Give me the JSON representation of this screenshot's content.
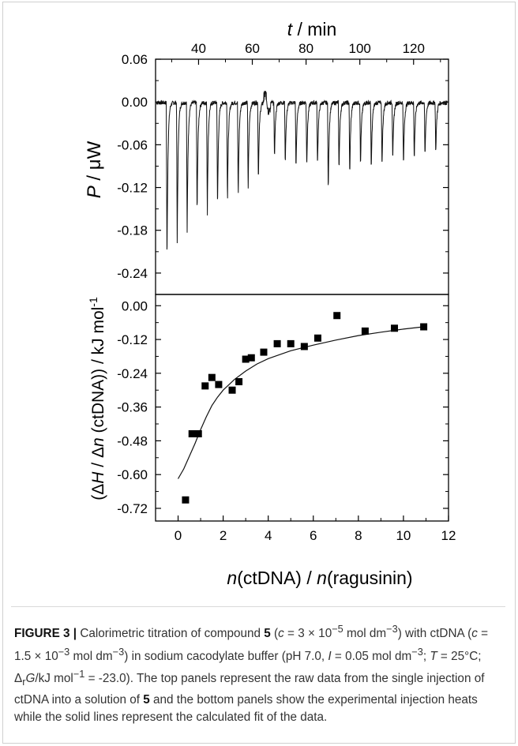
{
  "chart_data": [
    {
      "panel": "top",
      "type": "line",
      "top_axis_label": "t / min",
      "top_axis_label_var": "t",
      "top_axis_label_unit": " / min",
      "top_ticks": [
        40,
        60,
        80,
        100,
        120
      ],
      "top_range": [
        24,
        133
      ],
      "ylabel_var": "P",
      "ylabel_unit": " /  μW",
      "y_ticks": [
        "0.06",
        "0.00",
        "-0.06",
        "-0.12",
        "-0.18",
        "-0.24"
      ],
      "ylim": [
        -0.27,
        0.06
      ],
      "baseline": -0.001,
      "injections": [
        {
          "t": 28.0,
          "p": -0.235
        },
        {
          "t": 31.8,
          "p": -0.205
        },
        {
          "t": 35.5,
          "p": -0.191
        },
        {
          "t": 39.2,
          "p": -0.164
        },
        {
          "t": 43.0,
          "p": -0.161
        },
        {
          "t": 46.8,
          "p": -0.155
        },
        {
          "t": 50.5,
          "p": -0.145
        },
        {
          "t": 54.5,
          "p": -0.139
        },
        {
          "t": 58.2,
          "p": -0.125
        },
        {
          "t": 62.0,
          "p": -0.115
        },
        {
          "t": 68.0,
          "p": -0.08
        },
        {
          "t": 72.0,
          "p": -0.09
        },
        {
          "t": 76.0,
          "p": -0.097
        },
        {
          "t": 80.0,
          "p": -0.094
        },
        {
          "t": 84.0,
          "p": -0.093
        },
        {
          "t": 88.0,
          "p": -0.132
        },
        {
          "t": 92.0,
          "p": -0.099
        },
        {
          "t": 96.0,
          "p": -0.106
        },
        {
          "t": 100.0,
          "p": -0.094
        },
        {
          "t": 104.0,
          "p": -0.1
        },
        {
          "t": 108.0,
          "p": -0.094
        },
        {
          "t": 112.0,
          "p": -0.084
        },
        {
          "t": 116.0,
          "p": -0.093
        },
        {
          "t": 120.0,
          "p": -0.084
        },
        {
          "t": 124.0,
          "p": -0.079
        },
        {
          "t": 128.0,
          "p": -0.076
        }
      ]
    },
    {
      "panel": "bottom",
      "type": "scatter",
      "xlabel_parts": [
        "n",
        "(ctDNA) / ",
        "n",
        "(ragusinin)"
      ],
      "ylabel_parts": [
        "(Δ",
        "H",
        " / Δ",
        "n",
        " (ctDNA)) / kJ mol",
        "-1"
      ],
      "x_ticks": [
        "0",
        "2",
        "4",
        "6",
        "8",
        "10",
        "12"
      ],
      "xlim": [
        -1,
        12
      ],
      "y_ticks": [
        "0.00",
        "-0.12",
        "-0.24",
        "-0.36",
        "-0.48",
        "-0.60",
        "-0.72"
      ],
      "ylim": [
        -0.765,
        0.04
      ],
      "points": [
        {
          "x": 0.33,
          "y": -0.69
        },
        {
          "x": 0.62,
          "y": -0.455
        },
        {
          "x": 0.9,
          "y": -0.455
        },
        {
          "x": 1.2,
          "y": -0.285
        },
        {
          "x": 1.5,
          "y": -0.255
        },
        {
          "x": 1.8,
          "y": -0.28
        },
        {
          "x": 2.4,
          "y": -0.3
        },
        {
          "x": 2.7,
          "y": -0.27
        },
        {
          "x": 3.0,
          "y": -0.19
        },
        {
          "x": 3.25,
          "y": -0.185
        },
        {
          "x": 3.8,
          "y": -0.165
        },
        {
          "x": 4.4,
          "y": -0.135
        },
        {
          "x": 5.0,
          "y": -0.135
        },
        {
          "x": 5.6,
          "y": -0.145
        },
        {
          "x": 6.2,
          "y": -0.115
        },
        {
          "x": 7.05,
          "y": -0.035
        },
        {
          "x": 8.3,
          "y": -0.09
        },
        {
          "x": 9.6,
          "y": -0.08
        },
        {
          "x": 10.9,
          "y": -0.075
        }
      ],
      "fit": [
        {
          "x": 0.0,
          "y": -0.615
        },
        {
          "x": 0.25,
          "y": -0.58
        },
        {
          "x": 0.5,
          "y": -0.535
        },
        {
          "x": 0.75,
          "y": -0.49
        },
        {
          "x": 1.0,
          "y": -0.44
        },
        {
          "x": 1.25,
          "y": -0.395
        },
        {
          "x": 1.5,
          "y": -0.355
        },
        {
          "x": 1.75,
          "y": -0.325
        },
        {
          "x": 2.0,
          "y": -0.3
        },
        {
          "x": 2.5,
          "y": -0.262
        },
        {
          "x": 3.0,
          "y": -0.232
        },
        {
          "x": 3.5,
          "y": -0.207
        },
        {
          "x": 4.0,
          "y": -0.188
        },
        {
          "x": 5.0,
          "y": -0.16
        },
        {
          "x": 6.0,
          "y": -0.14
        },
        {
          "x": 7.0,
          "y": -0.122
        },
        {
          "x": 8.0,
          "y": -0.106
        },
        {
          "x": 9.0,
          "y": -0.094
        },
        {
          "x": 10.0,
          "y": -0.083
        },
        {
          "x": 11.0,
          "y": -0.074
        }
      ]
    }
  ],
  "caption": {
    "label": "FIGURE 3 |",
    "t1": " Calorimetric titration of compound ",
    "compound": "5",
    "t2": " (",
    "c_var": "c",
    "t3": " = 3 × 10",
    "exp1": "−5",
    "t4": " mol dm",
    "exp2": "−3",
    "t5": ") with ctDNA (",
    "c_var2": "c",
    "t6": " = 1.5 × 10",
    "exp3": "−3",
    "t7": " mol dm",
    "exp4": "−3",
    "t8": ") in sodium cacodylate buffer (pH 7.0, ",
    "i_var": "I",
    "t9": " = 0.05 mol dm",
    "exp5": "−3",
    "t10": "; ",
    "t_var": "T",
    "t11": " = 25°C; Δ",
    "sub_r": "r",
    "g_var": "G",
    "t12": "/kJ mol",
    "exp6": "−1",
    "t13": " = -23.0). The top panels represent the raw data from the single injection of ctDNA into a solution of ",
    "compound2": "5",
    "t14": " and the bottom panels show the experimental injection heats while the solid lines represent the calculated fit of the data."
  }
}
